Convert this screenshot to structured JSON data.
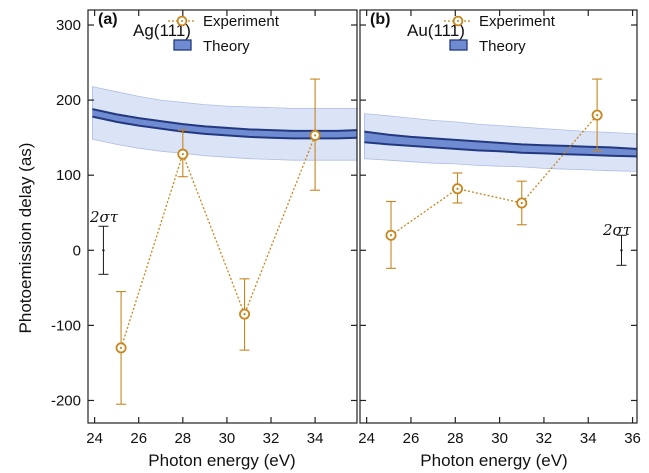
{
  "colors": {
    "experiment": "#c8861e",
    "theory_line": "#23397f",
    "theory_inner_fill": "#6f8bd2",
    "theory_outer_fill": "#dbe3f6",
    "sigma": "#1a1a1a"
  },
  "chart_data": {
    "type": "scatter",
    "ylabel": "Photoemission delay (as)",
    "xlabel": "Photon energy (eV)",
    "ylim": [
      -230,
      320
    ],
    "yticks": [
      -200,
      -100,
      0,
      100,
      200,
      300
    ],
    "grid": false,
    "legend": {
      "position": "top-right",
      "experiment_label": "Experiment",
      "theory_label": "Theory"
    },
    "panels": [
      {
        "letter": "(a)",
        "name": "Ag(111)",
        "xlim": [
          23.7,
          35.9
        ],
        "xticks": [
          24,
          26,
          28,
          30,
          32,
          34
        ],
        "sigma_label": "2στ",
        "sigma_bar": {
          "x": 24.4,
          "y": 0,
          "half_width": 32
        },
        "experiment": [
          {
            "x": 25.2,
            "y": -130,
            "yerr_low": -205,
            "yerr_high": -55
          },
          {
            "x": 28.0,
            "y": 128,
            "yerr_low": 98,
            "yerr_high": 160
          },
          {
            "x": 30.8,
            "y": -85,
            "yerr_low": -133,
            "yerr_high": -38
          },
          {
            "x": 34.0,
            "y": 153,
            "yerr_low": 80,
            "yerr_high": 228
          }
        ],
        "theory": {
          "x": [
            23.9,
            25,
            26,
            27,
            28,
            29,
            30,
            31,
            32,
            33,
            34,
            35,
            35.9
          ],
          "upper": [
            188,
            181,
            176,
            172,
            168,
            165,
            163,
            161,
            160,
            159,
            159,
            159,
            160
          ],
          "lower": [
            178,
            171,
            166,
            162,
            158,
            155,
            153,
            151,
            150,
            149,
            149,
            149,
            150
          ],
          "band_upper": [
            218,
            211,
            205,
            200,
            197,
            194,
            192,
            191,
            190,
            189,
            189,
            189,
            189
          ],
          "band_lower": [
            148,
            141,
            136,
            132,
            129,
            126,
            124,
            122,
            121,
            120,
            120,
            120,
            120
          ]
        }
      },
      {
        "letter": "(b)",
        "name": "Au(111)",
        "xlim": [
          23.7,
          36.2
        ],
        "xticks": [
          24,
          26,
          28,
          30,
          32,
          34,
          36
        ],
        "sigma_label": "2στ",
        "sigma_bar": {
          "x": 35.5,
          "y": 0,
          "half_width": 20
        },
        "experiment": [
          {
            "x": 25.1,
            "y": 20,
            "yerr_low": -24,
            "yerr_high": 65
          },
          {
            "x": 28.1,
            "y": 82,
            "yerr_low": 63,
            "yerr_high": 103
          },
          {
            "x": 31.0,
            "y": 63,
            "yerr_low": 34,
            "yerr_high": 92
          },
          {
            "x": 34.4,
            "y": 180,
            "yerr_low": 133,
            "yerr_high": 228
          }
        ],
        "theory": {
          "x": [
            23.9,
            25,
            26,
            27,
            28,
            29,
            30,
            31,
            32,
            33,
            34,
            35,
            36.2
          ],
          "upper": [
            158,
            154,
            151,
            149,
            147,
            145,
            143,
            141,
            140,
            139,
            138,
            137,
            135
          ],
          "lower": [
            144,
            141,
            139,
            137,
            135,
            133,
            132,
            130,
            129,
            128,
            127,
            126,
            125
          ],
          "band_upper": [
            182,
            179,
            176,
            173,
            171,
            168,
            166,
            164,
            162,
            160,
            158,
            157,
            155
          ],
          "band_lower": [
            122,
            120,
            118,
            116,
            115,
            113,
            112,
            111,
            109,
            108,
            107,
            106,
            105
          ]
        }
      }
    ]
  }
}
